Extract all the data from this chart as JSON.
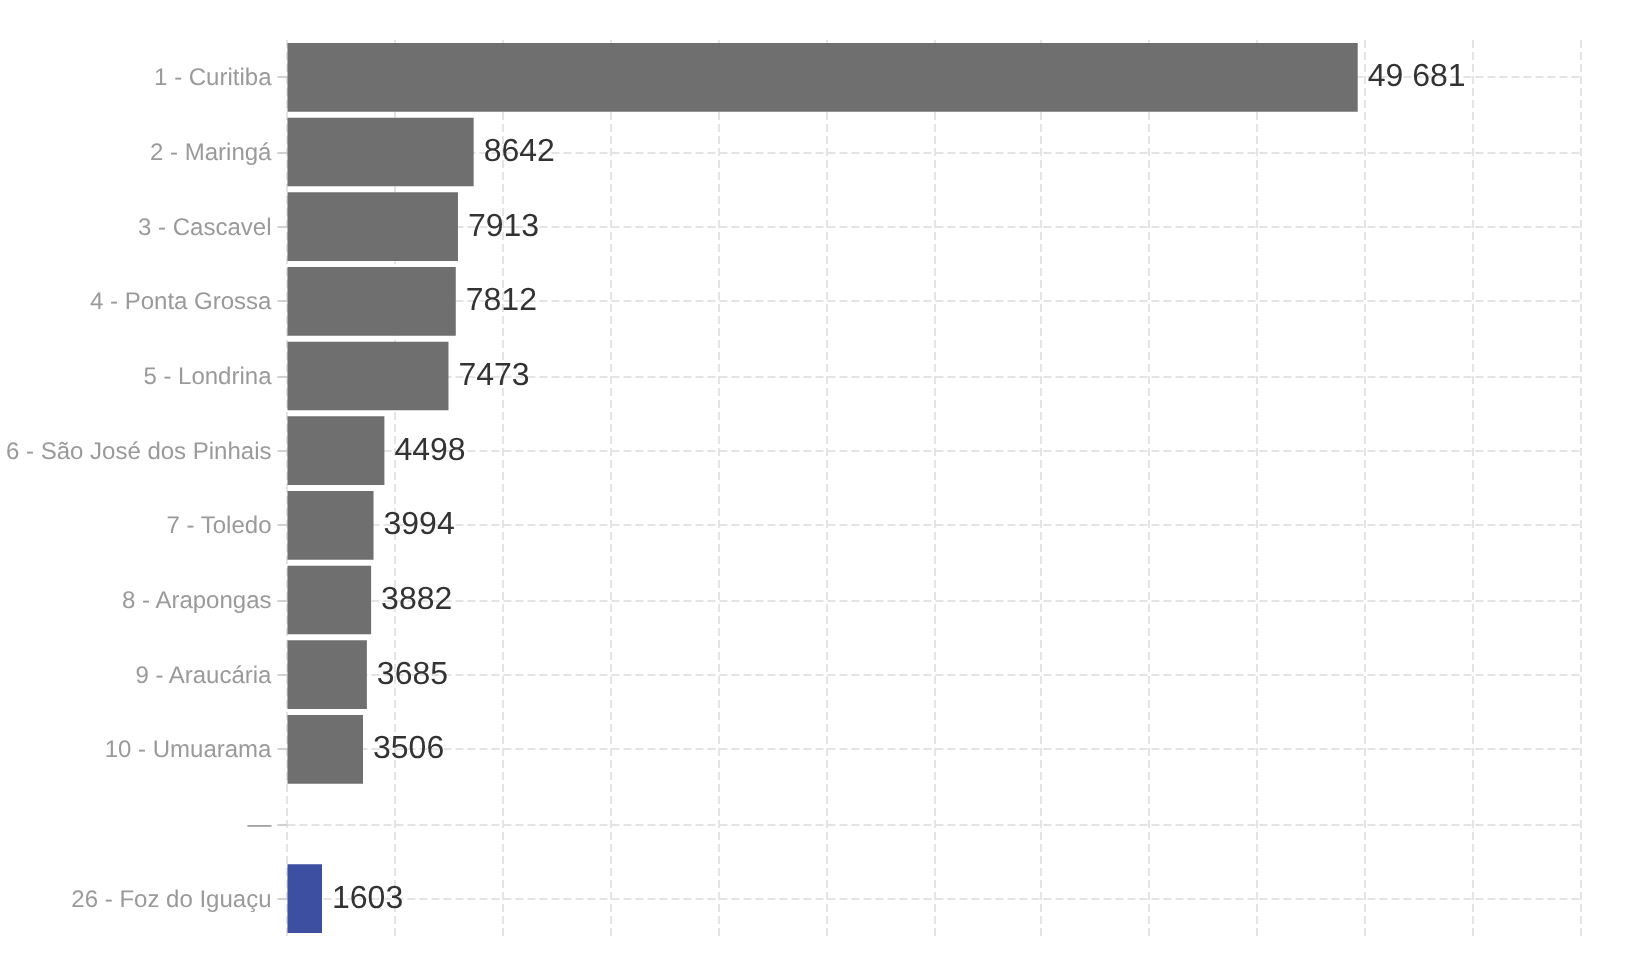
{
  "chart_data": {
    "type": "bar",
    "orientation": "horizontal",
    "categories": [
      "1 - Curitiba",
      "2 - Maringá",
      "3 - Cascavel",
      "4 - Ponta Grossa",
      "5 - Londrina",
      "6 - São José dos Pinhais",
      "7 - Toledo",
      "8 - Arapongas",
      "9 - Araucária",
      "10 - Umuarama",
      "—",
      "26 - Foz do Iguaçu"
    ],
    "values": [
      49681,
      8642,
      7913,
      7812,
      7473,
      4498,
      3994,
      3882,
      3685,
      3506,
      null,
      1603
    ],
    "colors": [
      "#6f6f6f",
      "#6f6f6f",
      "#6f6f6f",
      "#6f6f6f",
      "#6f6f6f",
      "#6f6f6f",
      "#6f6f6f",
      "#6f6f6f",
      "#6f6f6f",
      "#6f6f6f",
      "#6f6f6f",
      "#3d4fa0"
    ],
    "value_labels": [
      "49 681",
      "8642",
      "7913",
      "7812",
      "7473",
      "4498",
      "3994",
      "3882",
      "3685",
      "3506",
      null,
      "1603"
    ],
    "xlim": [
      0,
      60000
    ],
    "xticks": [
      0,
      5000,
      10000,
      15000,
      20000,
      25000,
      30000,
      35000,
      40000,
      45000,
      50000,
      55000,
      60000
    ],
    "grid": true,
    "tick_labels": "y"
  }
}
